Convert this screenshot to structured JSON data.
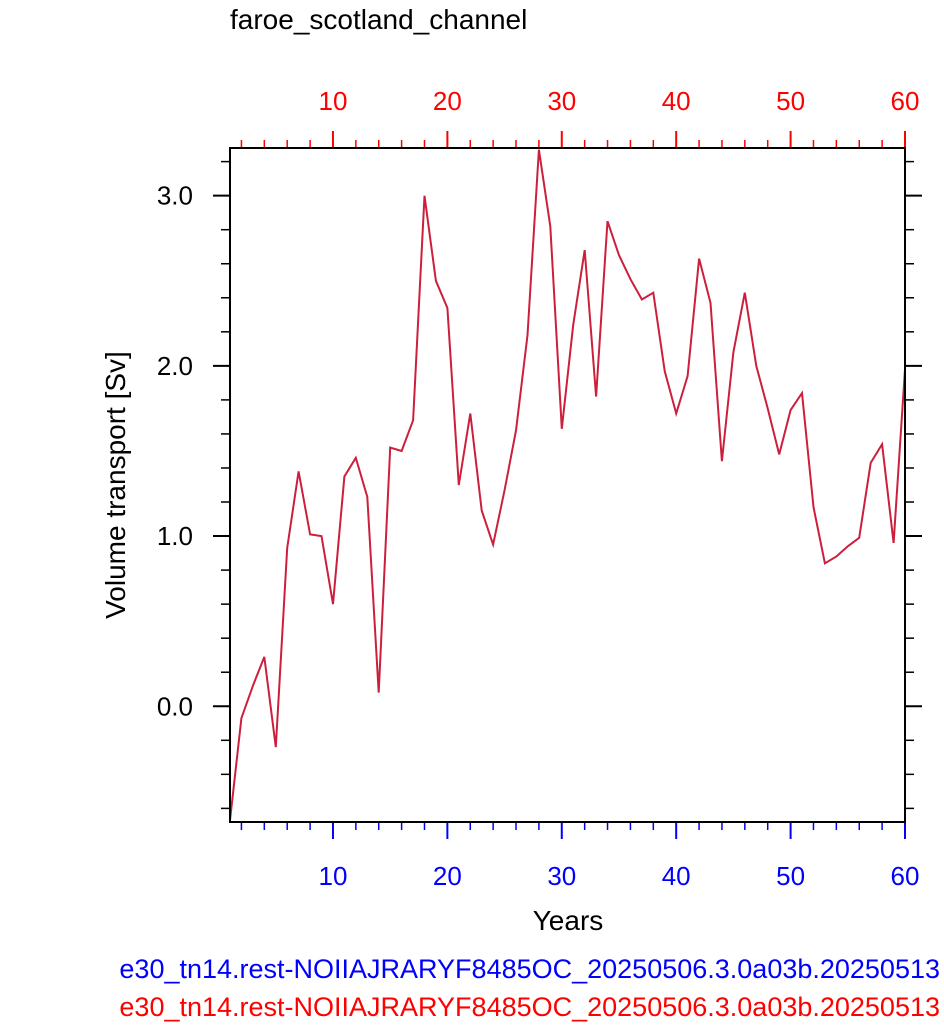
{
  "chart_data": {
    "type": "line",
    "title": "faroe_scotland_channel",
    "xlabel": "Years",
    "ylabel": "Volume transport [Sv]",
    "xlim": [
      1,
      60
    ],
    "ylim": [
      -0.68,
      3.28
    ],
    "x_ticks": [
      10,
      20,
      30,
      40,
      50,
      60
    ],
    "x_tick_labels": [
      "10",
      "20",
      "30",
      "40",
      "50",
      "60"
    ],
    "y_ticks": [
      0.0,
      1.0,
      2.0,
      3.0
    ],
    "y_tick_labels": [
      "0.0",
      "1.0",
      "2.0",
      "3.0"
    ],
    "grid": false,
    "colors": {
      "line": "#cc1f3c",
      "bottom_axis": "#0000ff",
      "top_axis": "#ff0000",
      "frame": "#000000"
    },
    "series": [
      {
        "x": [
          1,
          2,
          3,
          4,
          5,
          6,
          7,
          8,
          9,
          10,
          11,
          12,
          13,
          14,
          15,
          16,
          17,
          18,
          19,
          20,
          21,
          22,
          23,
          24,
          25,
          26,
          27,
          28,
          29,
          30,
          31,
          32,
          33,
          34,
          35,
          36,
          37,
          38,
          39,
          40,
          41,
          42,
          43,
          44,
          45,
          46,
          47,
          48,
          49,
          50,
          51,
          52,
          53,
          54,
          55,
          56,
          57,
          58,
          59,
          60
        ],
        "values": [
          -0.67,
          -0.07,
          0.12,
          0.29,
          -0.24,
          0.93,
          1.38,
          1.01,
          1.0,
          0.6,
          1.35,
          1.46,
          1.23,
          0.08,
          1.52,
          1.5,
          1.68,
          3.0,
          2.5,
          2.34,
          1.3,
          1.72,
          1.15,
          0.95,
          1.27,
          1.62,
          2.18,
          3.27,
          2.82,
          1.63,
          2.24,
          2.68,
          1.82,
          2.85,
          2.65,
          2.51,
          2.39,
          2.43,
          1.97,
          1.72,
          1.94,
          2.63,
          2.37,
          1.44,
          2.08,
          2.43,
          2.0,
          1.75,
          1.48,
          1.74,
          1.84,
          1.17,
          0.84,
          0.88,
          0.94,
          0.99,
          1.43,
          1.54,
          0.96,
          1.98
        ]
      }
    ]
  },
  "captions": {
    "blue": "e30_tn14.rest-NOIIAJRARYF8485OC_20250506.3.0a03b.20250513",
    "red": "e30_tn14.rest-NOIIAJRARYF8485OC_20250506.3.0a03b.20250513"
  }
}
